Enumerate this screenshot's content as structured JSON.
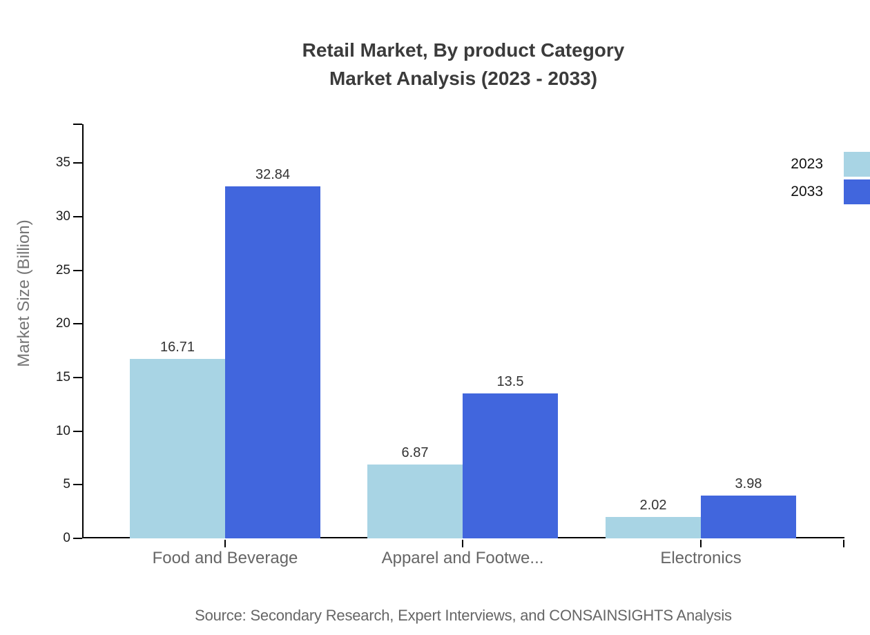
{
  "title": {
    "line1": "Retail Market, By product Category",
    "line2": "Market Analysis (2023 - 2033)"
  },
  "source": "Source: Secondary Research, Expert Interviews, and CONSAINSIGHTS Analysis",
  "colors": {
    "series_2023": "#a8d4e4",
    "series_2033": "#4166dd",
    "axis_line": "#000000",
    "title_text": "#3b3b3b",
    "tick_text": "#1c1c1c",
    "category_text": "#666666",
    "value_text": "#333333",
    "y_axis_title_text": "#757575",
    "source_text": "#666666",
    "legend_text": "#111111"
  },
  "chart_data": {
    "type": "bar",
    "title": "Retail Market, By product Category Market Analysis (2023 - 2033)",
    "categories": [
      "Food and Beverage",
      "Apparel and Footwe...",
      "Electronics"
    ],
    "series": [
      {
        "name": "2023",
        "color": "#a8d4e4",
        "values": [
          16.71,
          6.87,
          2.02
        ]
      },
      {
        "name": "2033",
        "color": "#4166dd",
        "values": [
          32.84,
          13.5,
          3.98
        ]
      }
    ],
    "value_labels": [
      [
        "16.71",
        "6.87",
        "2.02"
      ],
      [
        "32.84",
        "13.5",
        "3.98"
      ]
    ],
    "xlabel": "",
    "ylabel": "Market Size (Billion)",
    "y_ticks": [
      0,
      5,
      10,
      15,
      20,
      25,
      30,
      35
    ],
    "ylim": [
      0,
      38.6
    ],
    "grid": false,
    "legend_position": "top-right",
    "legend_entries": [
      "2023",
      "2033"
    ]
  }
}
